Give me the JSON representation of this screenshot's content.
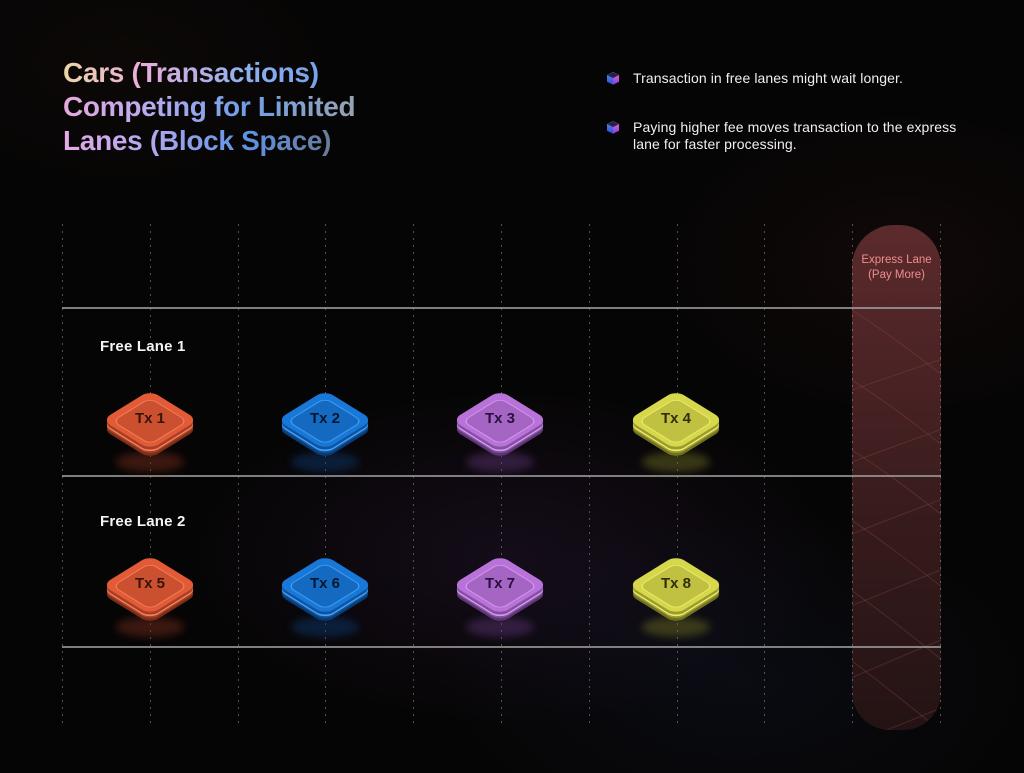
{
  "title": {
    "line1": "Cars (Transactions)",
    "line2": "Competing for Limited",
    "line3": "Lanes (Block Space)"
  },
  "legend": {
    "items": [
      {
        "icon": "cube-icon",
        "text": "Transaction in free lanes might wait longer."
      },
      {
        "icon": "cube-icon",
        "text": "Paying higher fee moves transaction to the express lane for faster processing."
      }
    ]
  },
  "diagram": {
    "lanes": [
      {
        "label": "Free Lane 1",
        "cars": [
          {
            "label": "Tx 1",
            "color": "orange"
          },
          {
            "label": "Tx 2",
            "color": "blue"
          },
          {
            "label": "Tx 3",
            "color": "purple"
          },
          {
            "label": "Tx 4",
            "color": "yellow"
          }
        ]
      },
      {
        "label": "Free Lane 2",
        "cars": [
          {
            "label": "Tx 5",
            "color": "orange"
          },
          {
            "label": "Tx 6",
            "color": "blue"
          },
          {
            "label": "Tx 7",
            "color": "purple"
          },
          {
            "label": "Tx 8",
            "color": "yellow"
          }
        ]
      }
    ],
    "express_lane": {
      "line1": "Express Lane",
      "line2": "(Pay More)",
      "text_color": "#ef8e8e",
      "bg_top": "#5b2a2c",
      "bg_bottom": "#241314"
    },
    "palettes": {
      "orange": {
        "top": "#e25a36",
        "rim": "#f2825c",
        "side": "#a63f26",
        "deep": "#7c2e1b",
        "ink": "#38130a"
      },
      "blue": {
        "top": "#1878d8",
        "rim": "#47a0f4",
        "side": "#0f54a0",
        "deep": "#0a3b74",
        "ink": "#06182e"
      },
      "purple": {
        "top": "#b972d9",
        "rim": "#d49af0",
        "side": "#8450a0",
        "deep": "#5e3676",
        "ink": "#2a1040"
      },
      "yellow": {
        "top": "#d6d74b",
        "rim": "#eceb6e",
        "side": "#9b9c30",
        "deep": "#717221",
        "ink": "#2f2f0b"
      }
    }
  }
}
